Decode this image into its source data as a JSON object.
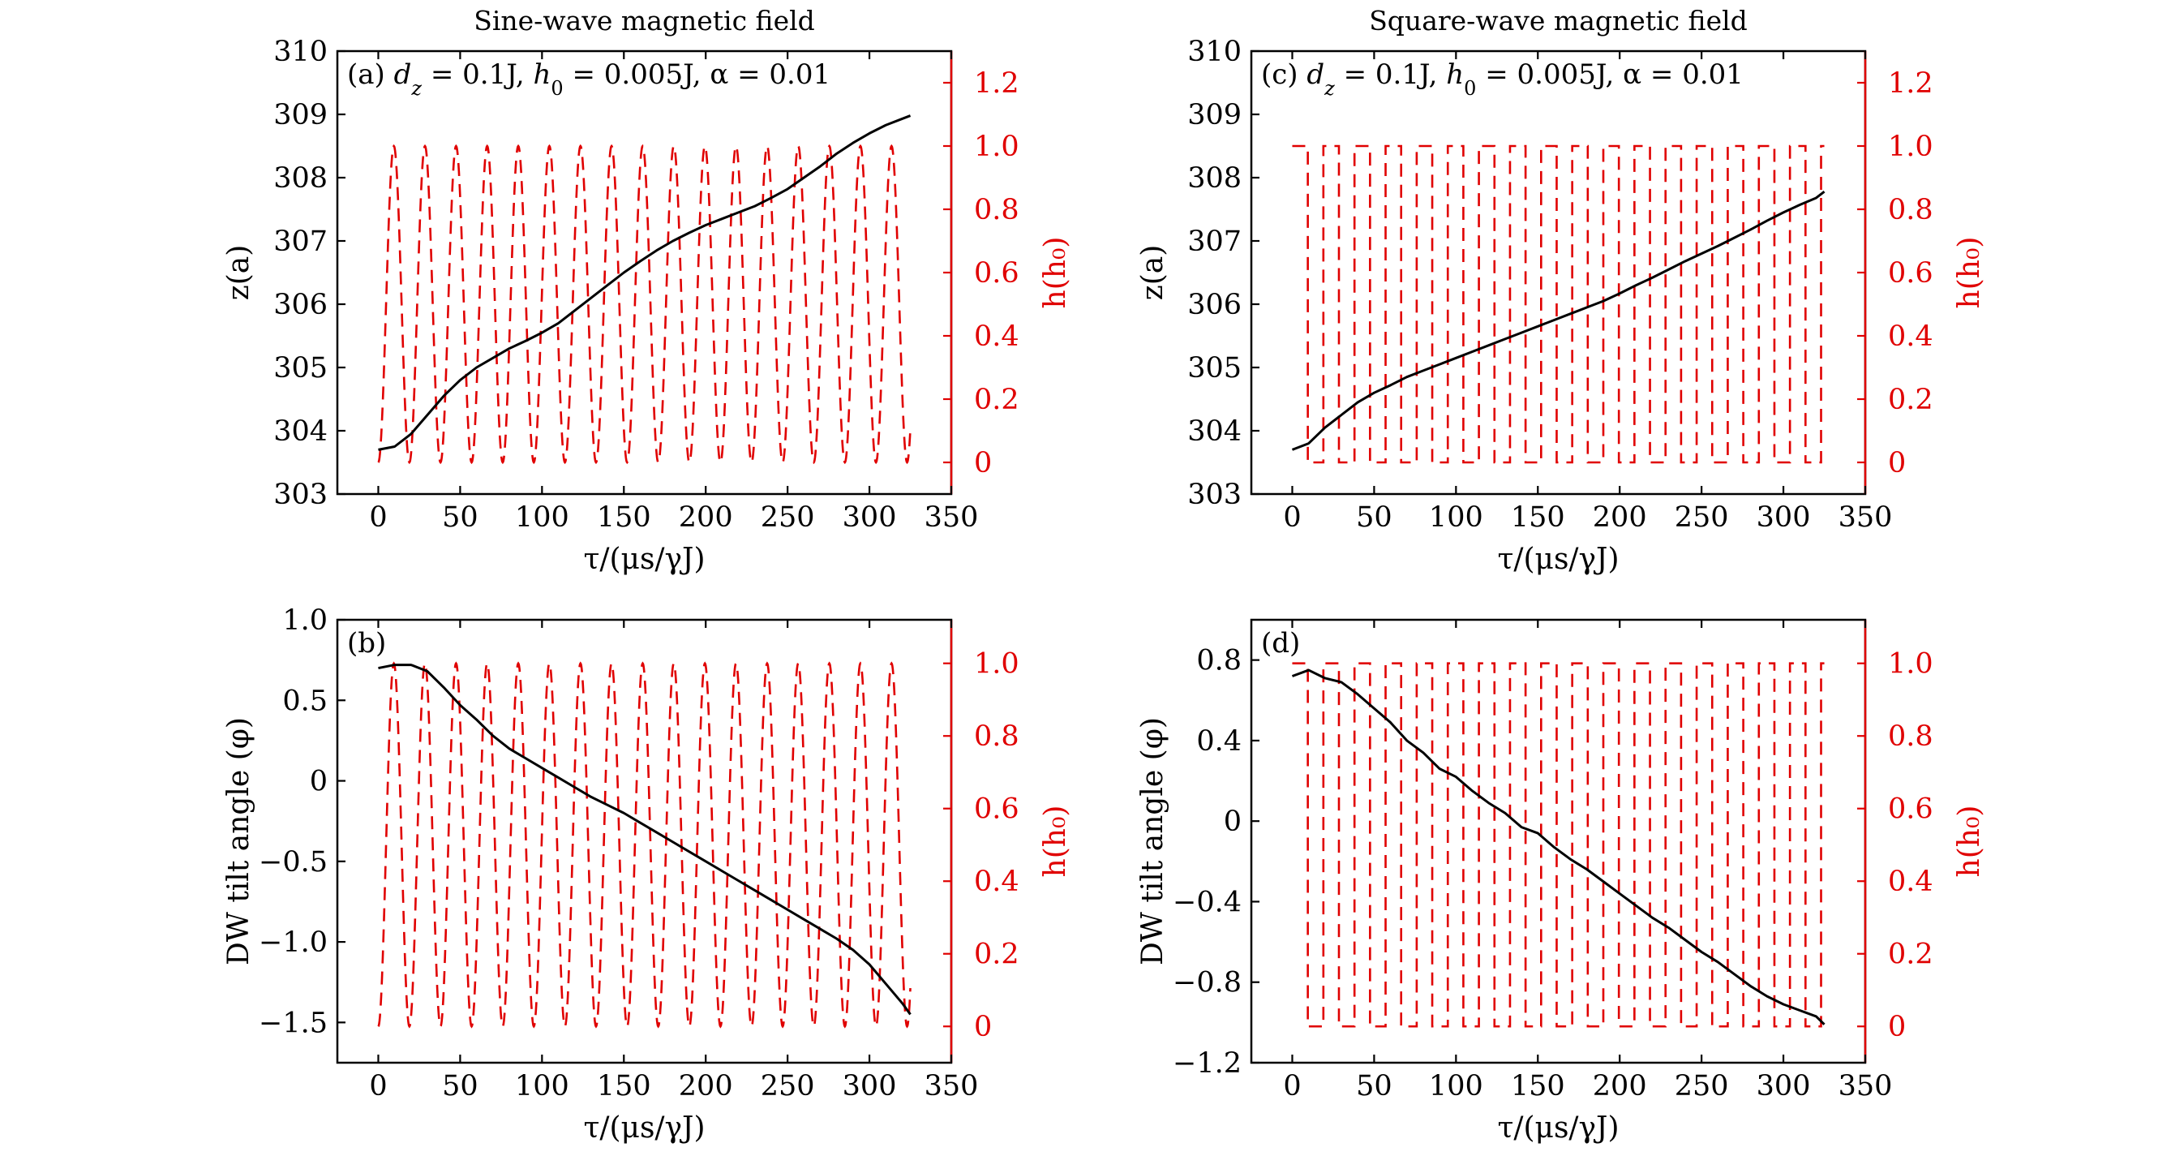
{
  "chart_data": [
    {
      "id": "a",
      "type": "line",
      "panel_title": "Sine-wave magnetic field",
      "annotation": "(a) d_z = 0.1J, h₀ = 0.005J, α = 0.01",
      "annotation_parts": {
        "label": "(a)",
        "dz": "= 0.1J,",
        "h0": "= 0.005J,",
        "alpha": "α = 0.01"
      },
      "xlabel": "τ/(μs/γJ)",
      "ylabel_left": "z(a)",
      "ylabel_right": "h(h₀)",
      "xlim": [
        -25,
        350
      ],
      "ylim_left": [
        303,
        310
      ],
      "ylim_right": [
        -0.1,
        1.3
      ],
      "xticks": [
        0,
        50,
        100,
        150,
        200,
        250,
        300,
        350
      ],
      "xtick_labels": [
        "0",
        "50",
        "100",
        "150",
        "200",
        "250",
        "300",
        "350"
      ],
      "yticks_left": [
        303,
        304,
        305,
        306,
        307,
        308,
        309,
        310
      ],
      "ytick_labels_left": [
        "303",
        "304",
        "305",
        "306",
        "307",
        "308",
        "309",
        "310"
      ],
      "yticks_right": [
        0,
        0.2,
        0.4,
        0.6,
        0.8,
        1.0,
        1.2
      ],
      "ytick_labels_right": [
        "0",
        "0.2",
        "0.4",
        "0.6",
        "0.8",
        "1.0",
        "1.2"
      ],
      "field_type": "sine",
      "field_period": 19,
      "field_range": [
        0.0,
        1.0
      ],
      "series": [
        {
          "name": "z",
          "axis": "left",
          "color": "#000000",
          "style": "solid",
          "x": [
            0,
            10,
            20,
            30,
            40,
            50,
            60,
            70,
            80,
            90,
            100,
            110,
            120,
            130,
            140,
            150,
            160,
            170,
            180,
            190,
            200,
            210,
            220,
            230,
            240,
            250,
            260,
            270,
            280,
            290,
            300,
            310,
            320,
            325
          ],
          "y": [
            303.7,
            303.75,
            303.95,
            304.25,
            304.55,
            304.8,
            305.0,
            305.15,
            305.3,
            305.42,
            305.55,
            305.7,
            305.9,
            306.1,
            306.3,
            306.5,
            306.68,
            306.85,
            307.0,
            307.13,
            307.25,
            307.35,
            307.45,
            307.55,
            307.68,
            307.82,
            308.0,
            308.18,
            308.38,
            308.55,
            308.7,
            308.83,
            308.93,
            308.98
          ]
        },
        {
          "name": "h",
          "axis": "right",
          "color": "#e00000",
          "style": "dashed",
          "x_range": [
            0,
            325
          ]
        }
      ]
    },
    {
      "id": "b",
      "type": "line",
      "annotation": "(b)",
      "xlabel": "τ/(μs/γJ)",
      "ylabel_left": "DW tilt angle (φ)",
      "ylabel_right": "h(h₀)",
      "xlim": [
        -25,
        350
      ],
      "ylim_left": [
        -1.75,
        1.0
      ],
      "ylim_right": [
        -0.1,
        1.12
      ],
      "xticks": [
        0,
        50,
        100,
        150,
        200,
        250,
        300,
        350
      ],
      "xtick_labels": [
        "0",
        "50",
        "100",
        "150",
        "200",
        "250",
        "300",
        "350"
      ],
      "yticks_left": [
        -1.5,
        -1.0,
        -0.5,
        0,
        0.5,
        1.0
      ],
      "ytick_labels_left": [
        "−1.5",
        "−1.0",
        "−0.5",
        "0",
        "0.5",
        "1.0"
      ],
      "yticks_right": [
        0,
        0.2,
        0.4,
        0.6,
        0.8,
        1.0
      ],
      "ytick_labels_right": [
        "0",
        "0.2",
        "0.4",
        "0.6",
        "0.8",
        "1.0"
      ],
      "field_type": "sine",
      "field_period": 19,
      "field_range": [
        0.0,
        1.0
      ],
      "series": [
        {
          "name": "phi",
          "axis": "left",
          "color": "#000000",
          "style": "solid",
          "x": [
            0,
            10,
            20,
            30,
            40,
            50,
            60,
            70,
            80,
            90,
            100,
            110,
            120,
            130,
            140,
            150,
            160,
            170,
            180,
            190,
            200,
            210,
            220,
            230,
            240,
            250,
            260,
            270,
            280,
            290,
            300,
            310,
            320,
            325
          ],
          "y": [
            0.7,
            0.72,
            0.72,
            0.68,
            0.58,
            0.47,
            0.38,
            0.28,
            0.2,
            0.14,
            0.08,
            0.02,
            -0.04,
            -0.1,
            -0.15,
            -0.2,
            -0.26,
            -0.32,
            -0.38,
            -0.44,
            -0.5,
            -0.56,
            -0.62,
            -0.68,
            -0.74,
            -0.8,
            -0.86,
            -0.92,
            -0.98,
            -1.05,
            -1.14,
            -1.26,
            -1.38,
            -1.45
          ]
        },
        {
          "name": "h",
          "axis": "right",
          "color": "#e00000",
          "style": "dashed",
          "x_range": [
            0,
            325
          ]
        }
      ]
    },
    {
      "id": "c",
      "type": "line",
      "panel_title": "Square-wave magnetic field",
      "annotation": "(c) d_z = 0.1J, h₀ = 0.005J, α = 0.01",
      "annotation_parts": {
        "label": "(c)",
        "dz": "= 0.1J,",
        "h0": "= 0.005J,",
        "alpha": "α = 0.01"
      },
      "xlabel": "τ/(μs/γJ)",
      "ylabel_left": "z(a)",
      "ylabel_right": "h(h₀)",
      "xlim": [
        -25,
        350
      ],
      "ylim_left": [
        303,
        310
      ],
      "ylim_right": [
        -0.1,
        1.3
      ],
      "xticks": [
        0,
        50,
        100,
        150,
        200,
        250,
        300,
        350
      ],
      "xtick_labels": [
        "0",
        "50",
        "100",
        "150",
        "200",
        "250",
        "300",
        "350"
      ],
      "yticks_left": [
        303,
        304,
        305,
        306,
        307,
        308,
        309,
        310
      ],
      "ytick_labels_left": [
        "303",
        "304",
        "305",
        "306",
        "307",
        "308",
        "309",
        "310"
      ],
      "yticks_right": [
        0,
        0.2,
        0.4,
        0.6,
        0.8,
        1.0,
        1.2
      ],
      "ytick_labels_right": [
        "0",
        "0.2",
        "0.4",
        "0.6",
        "0.8",
        "1.0",
        "1.2"
      ],
      "field_type": "square",
      "field_period": 19,
      "field_range": [
        0.0,
        1.0
      ],
      "series": [
        {
          "name": "z",
          "axis": "left",
          "color": "#000000",
          "style": "solid",
          "x": [
            0,
            10,
            20,
            30,
            40,
            50,
            60,
            70,
            80,
            90,
            100,
            110,
            120,
            130,
            140,
            150,
            160,
            170,
            180,
            190,
            200,
            210,
            220,
            230,
            240,
            250,
            260,
            270,
            280,
            290,
            300,
            310,
            320,
            325
          ],
          "y": [
            303.7,
            303.8,
            304.05,
            304.25,
            304.45,
            304.6,
            304.72,
            304.85,
            304.95,
            305.05,
            305.15,
            305.25,
            305.35,
            305.45,
            305.55,
            305.65,
            305.75,
            305.85,
            305.95,
            306.05,
            306.17,
            306.3,
            306.42,
            306.55,
            306.68,
            306.8,
            306.92,
            307.05,
            307.18,
            307.32,
            307.45,
            307.57,
            307.68,
            307.78
          ]
        },
        {
          "name": "h",
          "axis": "right",
          "color": "#e00000",
          "style": "dashed",
          "x_range": [
            0,
            325
          ]
        }
      ]
    },
    {
      "id": "d",
      "type": "line",
      "annotation": "(d)",
      "xlabel": "τ/(μs/γJ)",
      "ylabel_left": "DW tilt angle (φ)",
      "ylabel_right": "h(h₀)",
      "xlim": [
        -25,
        350
      ],
      "ylim_left": [
        -1.2,
        1.0
      ],
      "ylim_right": [
        -0.1,
        1.12
      ],
      "xticks": [
        0,
        50,
        100,
        150,
        200,
        250,
        300,
        350
      ],
      "xtick_labels": [
        "0",
        "50",
        "100",
        "150",
        "200",
        "250",
        "300",
        "350"
      ],
      "yticks_left": [
        -1.2,
        -0.8,
        -0.4,
        0,
        0.4,
        0.8
      ],
      "ytick_labels_left": [
        "−1.2",
        "−0.8",
        "−0.4",
        "0",
        "0.4",
        "0.8"
      ],
      "yticks_right": [
        0,
        0.2,
        0.4,
        0.6,
        0.8,
        1.0
      ],
      "ytick_labels_right": [
        "0",
        "0.2",
        "0.4",
        "0.6",
        "0.8",
        "1.0"
      ],
      "field_type": "square",
      "field_period": 19,
      "field_range": [
        0.0,
        1.0
      ],
      "series": [
        {
          "name": "phi",
          "axis": "left",
          "color": "#000000",
          "style": "solid",
          "x": [
            0,
            10,
            20,
            30,
            40,
            50,
            60,
            70,
            80,
            90,
            100,
            110,
            120,
            130,
            140,
            150,
            160,
            170,
            180,
            190,
            200,
            210,
            220,
            230,
            240,
            250,
            260,
            270,
            280,
            290,
            300,
            310,
            320,
            325
          ],
          "y": [
            0.72,
            0.75,
            0.71,
            0.69,
            0.63,
            0.56,
            0.49,
            0.4,
            0.34,
            0.26,
            0.22,
            0.15,
            0.09,
            0.04,
            -0.03,
            -0.06,
            -0.13,
            -0.19,
            -0.24,
            -0.3,
            -0.36,
            -0.42,
            -0.48,
            -0.53,
            -0.59,
            -0.65,
            -0.7,
            -0.76,
            -0.82,
            -0.87,
            -0.91,
            -0.94,
            -0.97,
            -1.01
          ]
        },
        {
          "name": "h",
          "axis": "right",
          "color": "#e00000",
          "style": "dashed",
          "x_range": [
            0,
            325
          ]
        }
      ]
    }
  ]
}
